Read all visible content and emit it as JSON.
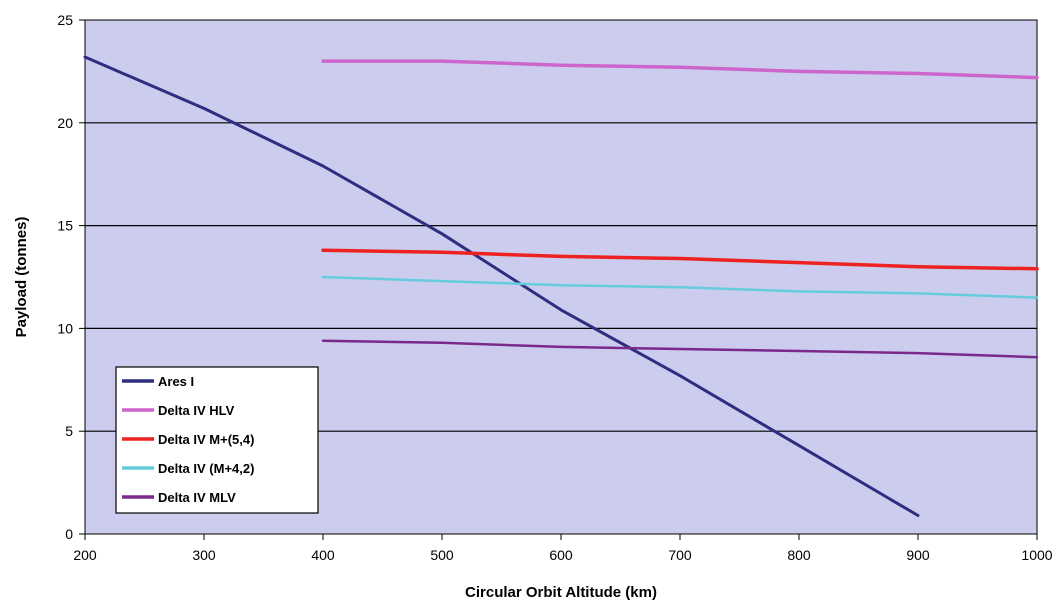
{
  "chart_data": {
    "type": "line",
    "title": "",
    "xlabel": "Circular Orbit Altitude (km)",
    "ylabel": "Payload (tonnes)",
    "xlim": [
      200,
      1000
    ],
    "ylim": [
      0,
      25
    ],
    "x_ticks": [
      200,
      300,
      400,
      500,
      600,
      700,
      800,
      900,
      1000
    ],
    "y_ticks": [
      0,
      5,
      10,
      15,
      20,
      25
    ],
    "grid": "horizontal",
    "legend_position": "bottom-left",
    "plot_background": "#CCCCEE",
    "series": [
      {
        "name": "Ares I",
        "color": "#2E2E80",
        "x": [
          200,
          300,
          400,
          500,
          600,
          700,
          800,
          900
        ],
        "y": [
          23.2,
          20.7,
          17.9,
          14.6,
          10.9,
          7.7,
          4.3,
          0.9
        ]
      },
      {
        "name": "Delta IV HLV",
        "color": "#CC66CC",
        "x": [
          400,
          500,
          600,
          700,
          800,
          900,
          1000
        ],
        "y": [
          23.0,
          23.0,
          22.8,
          22.7,
          22.5,
          22.4,
          22.2
        ]
      },
      {
        "name": "Delta IV M+(5,4)",
        "color": "#EE2222",
        "x": [
          400,
          500,
          600,
          700,
          800,
          900,
          1000
        ],
        "y": [
          13.8,
          13.7,
          13.5,
          13.4,
          13.2,
          13.0,
          12.9
        ]
      },
      {
        "name": "Delta IV (M+4,2)",
        "color": "#66CCDD",
        "x": [
          400,
          500,
          600,
          700,
          800,
          900,
          1000
        ],
        "y": [
          12.5,
          12.3,
          12.1,
          12.0,
          11.8,
          11.7,
          11.5
        ]
      },
      {
        "name": "Delta IV MLV",
        "color": "#7A2A8A",
        "x": [
          400,
          500,
          600,
          700,
          800,
          900,
          1000
        ],
        "y": [
          9.4,
          9.3,
          9.1,
          9.0,
          8.9,
          8.8,
          8.6
        ]
      }
    ]
  }
}
